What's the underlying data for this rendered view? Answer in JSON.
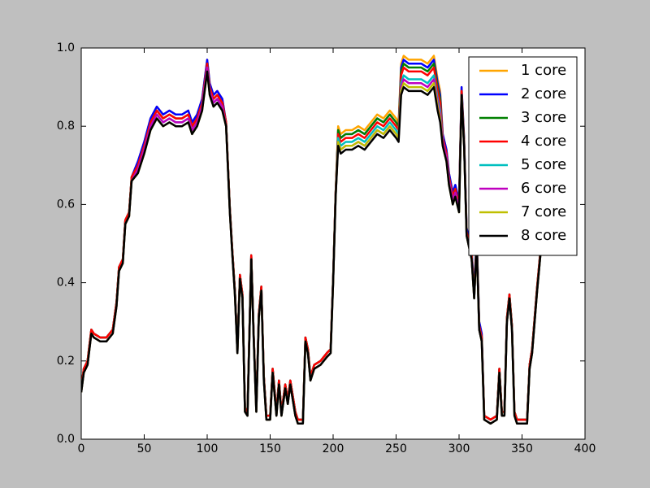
{
  "chart_data": {
    "type": "line",
    "x": [
      0,
      2,
      5,
      8,
      10,
      15,
      20,
      25,
      28,
      30,
      33,
      35,
      38,
      40,
      45,
      50,
      55,
      60,
      65,
      70,
      75,
      80,
      85,
      88,
      92,
      96,
      100,
      102,
      105,
      108,
      112,
      115,
      118,
      120,
      122,
      124,
      126,
      128,
      130,
      132,
      135,
      137,
      139,
      141,
      143,
      145,
      147,
      150,
      152,
      155,
      157,
      159,
      162,
      164,
      166,
      168,
      170,
      172,
      176,
      178,
      180,
      182,
      185,
      190,
      195,
      198,
      200,
      202,
      204,
      206,
      210,
      215,
      220,
      225,
      230,
      235,
      240,
      245,
      250,
      252,
      254,
      256,
      260,
      265,
      270,
      275,
      280,
      283,
      285,
      287,
      290,
      292,
      295,
      297,
      300,
      302,
      304,
      306,
      308,
      310,
      312,
      314,
      316,
      318,
      320,
      325,
      330,
      332,
      334,
      336,
      338,
      340,
      342,
      344,
      346,
      350,
      354,
      356,
      358,
      360,
      362,
      364,
      366
    ],
    "series": [
      {
        "name": "1 core",
        "color": "#ffa500",
        "values": [
          0.13,
          0.18,
          0.2,
          0.28,
          0.27,
          0.26,
          0.26,
          0.28,
          0.35,
          0.44,
          0.46,
          0.56,
          0.58,
          0.67,
          0.71,
          0.76,
          0.82,
          0.85,
          0.83,
          0.84,
          0.83,
          0.83,
          0.84,
          0.81,
          0.83,
          0.87,
          0.97,
          0.91,
          0.88,
          0.89,
          0.87,
          0.81,
          0.59,
          0.48,
          0.38,
          0.23,
          0.42,
          0.37,
          0.08,
          0.07,
          0.47,
          0.26,
          0.08,
          0.32,
          0.39,
          0.16,
          0.06,
          0.06,
          0.18,
          0.07,
          0.15,
          0.07,
          0.14,
          0.1,
          0.15,
          0.11,
          0.07,
          0.05,
          0.05,
          0.26,
          0.23,
          0.16,
          0.19,
          0.2,
          0.22,
          0.23,
          0.41,
          0.63,
          0.8,
          0.78,
          0.79,
          0.79,
          0.8,
          0.79,
          0.81,
          0.83,
          0.82,
          0.84,
          0.82,
          0.81,
          0.96,
          0.98,
          0.97,
          0.97,
          0.97,
          0.96,
          0.98,
          0.92,
          0.89,
          0.78,
          0.74,
          0.68,
          0.63,
          0.65,
          0.61,
          0.9,
          0.77,
          0.54,
          0.51,
          0.48,
          0.38,
          0.52,
          0.3,
          0.27,
          0.06,
          0.05,
          0.06,
          0.18,
          0.07,
          0.07,
          0.31,
          0.37,
          0.29,
          0.07,
          0.05,
          0.05,
          0.05,
          0.19,
          0.23,
          0.31,
          0.39,
          0.46,
          0.53
        ]
      },
      {
        "name": "2 core",
        "color": "#0000ff",
        "values": [
          0.13,
          0.18,
          0.2,
          0.28,
          0.27,
          0.26,
          0.26,
          0.28,
          0.35,
          0.44,
          0.46,
          0.56,
          0.58,
          0.67,
          0.71,
          0.76,
          0.82,
          0.85,
          0.83,
          0.84,
          0.83,
          0.83,
          0.84,
          0.81,
          0.83,
          0.87,
          0.97,
          0.91,
          0.88,
          0.89,
          0.87,
          0.81,
          0.59,
          0.48,
          0.38,
          0.23,
          0.42,
          0.37,
          0.08,
          0.07,
          0.47,
          0.26,
          0.08,
          0.32,
          0.39,
          0.16,
          0.06,
          0.06,
          0.18,
          0.07,
          0.15,
          0.07,
          0.14,
          0.1,
          0.15,
          0.11,
          0.07,
          0.05,
          0.05,
          0.26,
          0.23,
          0.16,
          0.19,
          0.2,
          0.22,
          0.23,
          0.41,
          0.63,
          0.79,
          0.77,
          0.78,
          0.78,
          0.79,
          0.78,
          0.8,
          0.82,
          0.81,
          0.83,
          0.81,
          0.8,
          0.95,
          0.97,
          0.96,
          0.96,
          0.96,
          0.95,
          0.97,
          0.91,
          0.88,
          0.78,
          0.74,
          0.68,
          0.63,
          0.65,
          0.61,
          0.9,
          0.77,
          0.54,
          0.51,
          0.48,
          0.38,
          0.52,
          0.3,
          0.27,
          0.06,
          0.05,
          0.06,
          0.18,
          0.07,
          0.07,
          0.31,
          0.37,
          0.29,
          0.07,
          0.05,
          0.05,
          0.05,
          0.19,
          0.23,
          0.31,
          0.39,
          0.46,
          0.53
        ]
      },
      {
        "name": "3 core",
        "color": "#008000",
        "values": [
          0.13,
          0.18,
          0.2,
          0.28,
          0.27,
          0.26,
          0.26,
          0.28,
          0.35,
          0.44,
          0.46,
          0.56,
          0.58,
          0.67,
          0.7,
          0.75,
          0.81,
          0.84,
          0.82,
          0.83,
          0.82,
          0.82,
          0.83,
          0.8,
          0.82,
          0.86,
          0.96,
          0.9,
          0.87,
          0.88,
          0.86,
          0.81,
          0.59,
          0.48,
          0.38,
          0.23,
          0.42,
          0.37,
          0.08,
          0.07,
          0.47,
          0.26,
          0.08,
          0.32,
          0.39,
          0.16,
          0.06,
          0.06,
          0.18,
          0.07,
          0.15,
          0.07,
          0.14,
          0.1,
          0.15,
          0.11,
          0.07,
          0.05,
          0.05,
          0.26,
          0.23,
          0.16,
          0.19,
          0.2,
          0.22,
          0.23,
          0.41,
          0.63,
          0.79,
          0.77,
          0.78,
          0.78,
          0.79,
          0.78,
          0.8,
          0.82,
          0.81,
          0.83,
          0.81,
          0.8,
          0.94,
          0.96,
          0.95,
          0.95,
          0.95,
          0.94,
          0.96,
          0.9,
          0.87,
          0.77,
          0.73,
          0.67,
          0.62,
          0.64,
          0.6,
          0.89,
          0.76,
          0.53,
          0.5,
          0.47,
          0.37,
          0.51,
          0.29,
          0.26,
          0.06,
          0.05,
          0.06,
          0.18,
          0.07,
          0.07,
          0.31,
          0.37,
          0.29,
          0.07,
          0.05,
          0.05,
          0.05,
          0.19,
          0.23,
          0.31,
          0.39,
          0.46,
          0.53
        ]
      },
      {
        "name": "4 core",
        "color": "#ff0000",
        "values": [
          0.13,
          0.18,
          0.2,
          0.28,
          0.27,
          0.26,
          0.26,
          0.28,
          0.35,
          0.44,
          0.46,
          0.56,
          0.58,
          0.67,
          0.7,
          0.75,
          0.81,
          0.84,
          0.82,
          0.83,
          0.82,
          0.82,
          0.83,
          0.8,
          0.82,
          0.86,
          0.96,
          0.9,
          0.87,
          0.88,
          0.86,
          0.81,
          0.59,
          0.48,
          0.38,
          0.23,
          0.42,
          0.37,
          0.08,
          0.07,
          0.47,
          0.26,
          0.08,
          0.32,
          0.39,
          0.16,
          0.06,
          0.06,
          0.18,
          0.07,
          0.15,
          0.07,
          0.14,
          0.1,
          0.15,
          0.11,
          0.07,
          0.05,
          0.05,
          0.26,
          0.23,
          0.16,
          0.19,
          0.2,
          0.22,
          0.23,
          0.41,
          0.63,
          0.78,
          0.76,
          0.77,
          0.77,
          0.78,
          0.77,
          0.79,
          0.81,
          0.8,
          0.82,
          0.8,
          0.79,
          0.93,
          0.95,
          0.94,
          0.94,
          0.94,
          0.93,
          0.95,
          0.89,
          0.86,
          0.77,
          0.73,
          0.67,
          0.62,
          0.64,
          0.6,
          0.89,
          0.76,
          0.53,
          0.5,
          0.47,
          0.37,
          0.51,
          0.29,
          0.26,
          0.06,
          0.05,
          0.06,
          0.18,
          0.07,
          0.07,
          0.31,
          0.37,
          0.29,
          0.07,
          0.05,
          0.05,
          0.05,
          0.19,
          0.23,
          0.31,
          0.39,
          0.46,
          0.53
        ]
      },
      {
        "name": "5 core",
        "color": "#00bfbf",
        "values": [
          0.12,
          0.17,
          0.19,
          0.27,
          0.26,
          0.25,
          0.25,
          0.27,
          0.34,
          0.43,
          0.45,
          0.55,
          0.57,
          0.66,
          0.69,
          0.74,
          0.8,
          0.83,
          0.81,
          0.82,
          0.81,
          0.81,
          0.82,
          0.79,
          0.81,
          0.85,
          0.95,
          0.89,
          0.86,
          0.87,
          0.85,
          0.8,
          0.58,
          0.47,
          0.37,
          0.22,
          0.41,
          0.36,
          0.07,
          0.06,
          0.46,
          0.25,
          0.07,
          0.31,
          0.38,
          0.15,
          0.05,
          0.05,
          0.17,
          0.06,
          0.14,
          0.06,
          0.13,
          0.09,
          0.14,
          0.1,
          0.06,
          0.04,
          0.04,
          0.25,
          0.22,
          0.15,
          0.18,
          0.19,
          0.21,
          0.22,
          0.4,
          0.62,
          0.77,
          0.75,
          0.76,
          0.76,
          0.77,
          0.76,
          0.78,
          0.8,
          0.79,
          0.81,
          0.79,
          0.78,
          0.91,
          0.93,
          0.92,
          0.92,
          0.92,
          0.91,
          0.93,
          0.87,
          0.84,
          0.76,
          0.72,
          0.66,
          0.61,
          0.63,
          0.59,
          0.88,
          0.75,
          0.52,
          0.49,
          0.46,
          0.36,
          0.5,
          0.28,
          0.25,
          0.05,
          0.04,
          0.05,
          0.17,
          0.06,
          0.06,
          0.3,
          0.36,
          0.28,
          0.06,
          0.04,
          0.04,
          0.04,
          0.18,
          0.22,
          0.3,
          0.38,
          0.45,
          0.52
        ]
      },
      {
        "name": "6 core",
        "color": "#bf00bf",
        "values": [
          0.12,
          0.17,
          0.19,
          0.27,
          0.26,
          0.25,
          0.25,
          0.27,
          0.34,
          0.43,
          0.45,
          0.55,
          0.57,
          0.66,
          0.69,
          0.74,
          0.8,
          0.83,
          0.81,
          0.82,
          0.81,
          0.81,
          0.82,
          0.79,
          0.81,
          0.85,
          0.95,
          0.89,
          0.86,
          0.87,
          0.85,
          0.8,
          0.58,
          0.47,
          0.37,
          0.22,
          0.41,
          0.36,
          0.07,
          0.06,
          0.46,
          0.25,
          0.07,
          0.31,
          0.38,
          0.15,
          0.05,
          0.05,
          0.17,
          0.06,
          0.14,
          0.06,
          0.13,
          0.09,
          0.14,
          0.1,
          0.06,
          0.04,
          0.04,
          0.25,
          0.22,
          0.15,
          0.18,
          0.19,
          0.21,
          0.22,
          0.4,
          0.62,
          0.76,
          0.74,
          0.75,
          0.75,
          0.76,
          0.75,
          0.77,
          0.79,
          0.78,
          0.8,
          0.78,
          0.77,
          0.9,
          0.92,
          0.91,
          0.91,
          0.91,
          0.9,
          0.92,
          0.86,
          0.83,
          0.76,
          0.72,
          0.66,
          0.61,
          0.63,
          0.59,
          0.88,
          0.75,
          0.52,
          0.49,
          0.46,
          0.36,
          0.5,
          0.28,
          0.25,
          0.05,
          0.04,
          0.05,
          0.17,
          0.06,
          0.06,
          0.3,
          0.36,
          0.28,
          0.06,
          0.04,
          0.04,
          0.04,
          0.18,
          0.22,
          0.3,
          0.38,
          0.45,
          0.52
        ]
      },
      {
        "name": "7 core",
        "color": "#bfbf00",
        "values": [
          0.12,
          0.17,
          0.19,
          0.27,
          0.26,
          0.25,
          0.25,
          0.27,
          0.34,
          0.43,
          0.45,
          0.55,
          0.57,
          0.66,
          0.68,
          0.73,
          0.79,
          0.82,
          0.8,
          0.81,
          0.8,
          0.8,
          0.81,
          0.78,
          0.8,
          0.84,
          0.94,
          0.88,
          0.85,
          0.86,
          0.84,
          0.8,
          0.58,
          0.47,
          0.37,
          0.22,
          0.41,
          0.36,
          0.07,
          0.06,
          0.46,
          0.25,
          0.07,
          0.31,
          0.38,
          0.15,
          0.05,
          0.05,
          0.17,
          0.06,
          0.14,
          0.06,
          0.13,
          0.09,
          0.14,
          0.1,
          0.06,
          0.04,
          0.04,
          0.25,
          0.22,
          0.15,
          0.18,
          0.19,
          0.21,
          0.22,
          0.4,
          0.62,
          0.76,
          0.74,
          0.75,
          0.75,
          0.76,
          0.75,
          0.77,
          0.79,
          0.78,
          0.8,
          0.78,
          0.77,
          0.89,
          0.91,
          0.9,
          0.9,
          0.9,
          0.89,
          0.91,
          0.85,
          0.82,
          0.75,
          0.71,
          0.65,
          0.6,
          0.62,
          0.58,
          0.88,
          0.75,
          0.52,
          0.49,
          0.46,
          0.36,
          0.5,
          0.28,
          0.25,
          0.05,
          0.04,
          0.05,
          0.17,
          0.06,
          0.06,
          0.3,
          0.36,
          0.28,
          0.06,
          0.04,
          0.04,
          0.04,
          0.18,
          0.22,
          0.3,
          0.38,
          0.45,
          0.52
        ]
      },
      {
        "name": "8 core",
        "color": "#000000",
        "values": [
          0.12,
          0.17,
          0.19,
          0.27,
          0.26,
          0.25,
          0.25,
          0.27,
          0.34,
          0.43,
          0.45,
          0.55,
          0.57,
          0.66,
          0.68,
          0.73,
          0.79,
          0.82,
          0.8,
          0.81,
          0.8,
          0.8,
          0.81,
          0.78,
          0.8,
          0.84,
          0.94,
          0.88,
          0.85,
          0.86,
          0.84,
          0.8,
          0.58,
          0.47,
          0.37,
          0.22,
          0.41,
          0.36,
          0.07,
          0.06,
          0.46,
          0.25,
          0.07,
          0.31,
          0.38,
          0.15,
          0.05,
          0.05,
          0.17,
          0.06,
          0.14,
          0.06,
          0.13,
          0.09,
          0.14,
          0.1,
          0.06,
          0.04,
          0.04,
          0.25,
          0.22,
          0.15,
          0.18,
          0.19,
          0.21,
          0.22,
          0.4,
          0.62,
          0.75,
          0.73,
          0.74,
          0.74,
          0.75,
          0.74,
          0.76,
          0.78,
          0.77,
          0.79,
          0.77,
          0.76,
          0.88,
          0.9,
          0.89,
          0.89,
          0.89,
          0.88,
          0.9,
          0.84,
          0.81,
          0.75,
          0.71,
          0.65,
          0.6,
          0.62,
          0.58,
          0.88,
          0.75,
          0.52,
          0.49,
          0.46,
          0.36,
          0.5,
          0.28,
          0.25,
          0.05,
          0.04,
          0.05,
          0.17,
          0.06,
          0.06,
          0.3,
          0.36,
          0.28,
          0.06,
          0.04,
          0.04,
          0.04,
          0.18,
          0.22,
          0.3,
          0.38,
          0.45,
          0.52
        ]
      }
    ],
    "xlim": [
      0,
      400
    ],
    "xticks": [
      0,
      50,
      100,
      150,
      200,
      250,
      300,
      350,
      400
    ],
    "ylim": [
      0,
      1
    ],
    "yticks": [
      {
        "value": 0,
        "label": "0.0"
      },
      0.2,
      0.4,
      0.6,
      0.8,
      {
        "value": 1,
        "label": "1.0"
      }
    ],
    "legend": "upper right"
  }
}
